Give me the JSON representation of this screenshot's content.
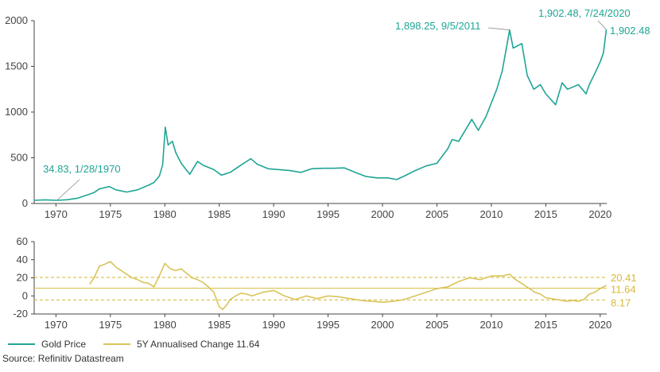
{
  "chart_data": [
    {
      "type": "line",
      "title": "",
      "xlabel": "",
      "ylabel": "",
      "xlim": [
        1968,
        2020.6
      ],
      "ylim": [
        0,
        2000
      ],
      "x_ticks": [
        1970,
        1975,
        1980,
        1985,
        1990,
        1995,
        2000,
        2005,
        2010,
        2015,
        2020
      ],
      "y_ticks": [
        0,
        500,
        1000,
        1500,
        2000
      ],
      "grid": false,
      "series": [
        {
          "name": "Gold Price",
          "color": "#1fa595",
          "x": [
            1968.0,
            1969.0,
            1970.08,
            1971.0,
            1972.0,
            1973.0,
            1973.5,
            1974.0,
            1974.9,
            1975.5,
            1976.5,
            1977.5,
            1978.5,
            1979.0,
            1979.5,
            1979.8,
            1980.05,
            1980.3,
            1980.7,
            1981.0,
            1981.5,
            1982.3,
            1983.0,
            1983.5,
            1984.5,
            1985.2,
            1986.0,
            1987.0,
            1987.9,
            1988.5,
            1989.5,
            1990.5,
            1991.5,
            1992.5,
            1993.5,
            1994.5,
            1995.5,
            1996.5,
            1997.5,
            1998.5,
            1999.5,
            2000.5,
            2001.3,
            2002.0,
            2003.0,
            2004.0,
            2005.0,
            2006.0,
            2006.4,
            2007.0,
            2008.2,
            2008.8,
            2009.5,
            2010.0,
            2010.5,
            2011.0,
            2011.68,
            2012.0,
            2012.8,
            2013.3,
            2013.9,
            2014.5,
            2015.0,
            2015.9,
            2016.5,
            2017.0,
            2018.0,
            2018.7,
            2019.0,
            2019.5,
            2020.0,
            2020.3,
            2020.56
          ],
          "values": [
            35,
            40,
            34.83,
            41,
            58,
            97,
            120,
            160,
            185,
            150,
            125,
            150,
            200,
            230,
            300,
            420,
            835,
            640,
            680,
            560,
            440,
            320,
            460,
            420,
            370,
            310,
            340,
            420,
            490,
            430,
            380,
            370,
            360,
            340,
            380,
            385,
            385,
            390,
            340,
            295,
            280,
            280,
            262,
            300,
            360,
            410,
            440,
            600,
            700,
            680,
            920,
            800,
            950,
            1100,
            1250,
            1450,
            1898.25,
            1700,
            1750,
            1400,
            1250,
            1300,
            1200,
            1080,
            1320,
            1250,
            1300,
            1200,
            1300,
            1420,
            1550,
            1650,
            1902.48
          ]
        }
      ],
      "annotations": [
        {
          "text": "34.83, 1/28/1970",
          "x": 1970.08,
          "y": 34.83
        },
        {
          "text": "1,898.25, 9/5/2011",
          "x": 2011.68,
          "y": 1898.25
        },
        {
          "text": "1,902.48, 7/24/2020",
          "x": 2020.56,
          "y": 1902.48
        },
        {
          "text": "1,902.48",
          "x": 2020.56,
          "y": 1902.48
        }
      ]
    },
    {
      "type": "line",
      "title": "",
      "xlabel": "",
      "ylabel": "",
      "xlim": [
        1968,
        2020.6
      ],
      "ylim": [
        -20,
        60
      ],
      "x_ticks": [
        1970,
        1975,
        1980,
        1985,
        1990,
        1995,
        2000,
        2005,
        2010,
        2015,
        2020
      ],
      "y_ticks": [
        -20,
        0,
        20,
        40,
        60
      ],
      "grid": false,
      "series": [
        {
          "name": "5Y Annualised Change 11.64",
          "color": "#d9c45a",
          "x": [
            1973.1,
            1973.5,
            1974.0,
            1974.5,
            1975.0,
            1975.5,
            1976.0,
            1976.5,
            1977.0,
            1977.5,
            1978.0,
            1978.5,
            1979.0,
            1979.5,
            1980.0,
            1980.5,
            1981.0,
            1981.5,
            1982.0,
            1982.5,
            1983.0,
            1983.5,
            1984.0,
            1984.5,
            1985.0,
            1985.3,
            1985.7,
            1986.0,
            1986.5,
            1987.0,
            1987.5,
            1988.0,
            1989.0,
            1990.0,
            1991.0,
            1992.0,
            1993.0,
            1994.0,
            1995.0,
            1996.0,
            1997.0,
            1998.0,
            1999.0,
            2000.0,
            2001.0,
            2002.0,
            2003.0,
            2004.0,
            2005.0,
            2006.0,
            2007.0,
            2008.0,
            2009.0,
            2010.0,
            2011.0,
            2011.7,
            2012.0,
            2012.5,
            2013.0,
            2013.5,
            2014.0,
            2014.5,
            2015.0,
            2016.0,
            2017.0,
            2017.5,
            2018.0,
            2018.5,
            2019.0,
            2019.5,
            2020.0,
            2020.56
          ],
          "values": [
            13,
            20,
            33,
            35,
            38,
            32,
            28,
            24,
            20,
            18,
            15,
            14,
            10,
            22,
            36,
            30,
            28,
            30,
            25,
            20,
            18,
            15,
            10,
            4,
            -12,
            -15,
            -10,
            -4,
            0,
            3,
            2,
            0,
            4,
            6,
            0,
            -4,
            0,
            -3,
            0,
            -1,
            -3,
            -5,
            -6,
            -7,
            -6,
            -4,
            0,
            4,
            8,
            10,
            16,
            20,
            18,
            22,
            22,
            24,
            20,
            16,
            12,
            8,
            4,
            2,
            -2,
            -4,
            -6,
            -5,
            -6,
            -4,
            2,
            4,
            8,
            11.64
          ]
        }
      ],
      "reference_lines": [
        {
          "label": "20.41",
          "value": 20.41
        },
        {
          "label": "11.64",
          "value": 8.5
        },
        {
          "label": "8.17",
          "value": -4.5
        }
      ]
    }
  ],
  "legend": [
    {
      "label": "Gold Price",
      "color": "#1fa595"
    },
    {
      "label": "5Y Annualised Change 11.64",
      "color": "#d9c45a"
    }
  ],
  "source": "Source: Refinitiv Datastream"
}
